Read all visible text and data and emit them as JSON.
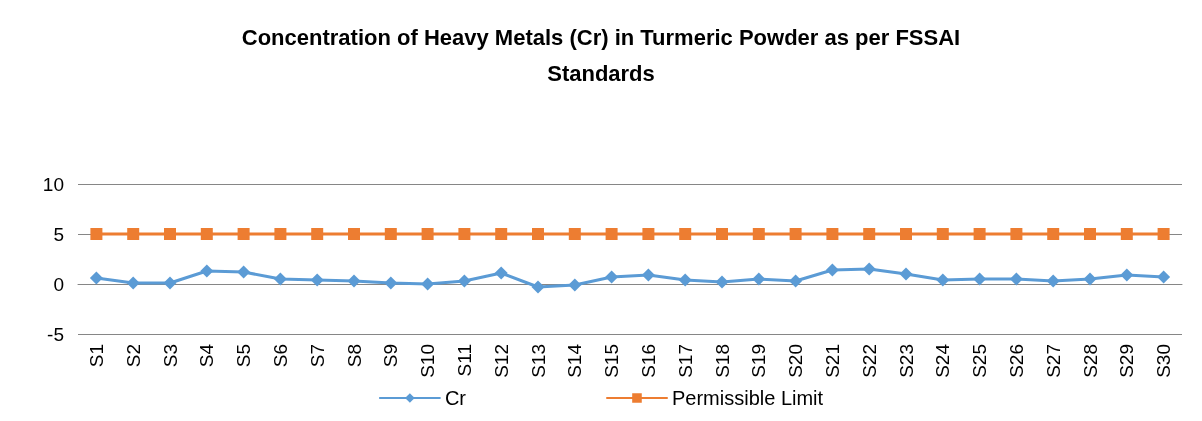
{
  "chart_data": {
    "type": "line",
    "title": "Concentration of Heavy Metals (Cr) in Turmeric Powder as per FSSAI\nStandards",
    "categories": [
      "S1",
      "S2",
      "S3",
      "S4",
      "S5",
      "S6",
      "S7",
      "S8",
      "S9",
      "S10",
      "S11",
      "S12",
      "S13",
      "S14",
      "S15",
      "S16",
      "S17",
      "S18",
      "S19",
      "S20",
      "S21",
      "S22",
      "S23",
      "S24",
      "S25",
      "S26",
      "S27",
      "S28",
      "S29",
      "S30"
    ],
    "series": [
      {
        "name": "Cr",
        "color": "#5b9bd5",
        "marker": "diamond",
        "values": [
          0.6,
          0.1,
          0.1,
          1.3,
          1.2,
          0.5,
          0.4,
          0.3,
          0.1,
          0.0,
          0.3,
          1.1,
          -0.3,
          -0.1,
          0.7,
          0.9,
          0.4,
          0.2,
          0.5,
          0.3,
          1.4,
          1.5,
          1.0,
          0.4,
          0.5,
          0.5,
          0.3,
          0.5,
          0.9,
          0.7
        ]
      },
      {
        "name": "Permissible Limit",
        "color": "#ed7d31",
        "marker": "square",
        "values": [
          5,
          5,
          5,
          5,
          5,
          5,
          5,
          5,
          5,
          5,
          5,
          5,
          5,
          5,
          5,
          5,
          5,
          5,
          5,
          5,
          5,
          5,
          5,
          5,
          5,
          5,
          5,
          5,
          5,
          5
        ]
      }
    ],
    "ylim": [
      -5,
      10
    ],
    "yticks": [
      -5,
      0,
      5,
      10
    ],
    "grid": "y",
    "legend": "bottom",
    "line_style": "solid"
  }
}
